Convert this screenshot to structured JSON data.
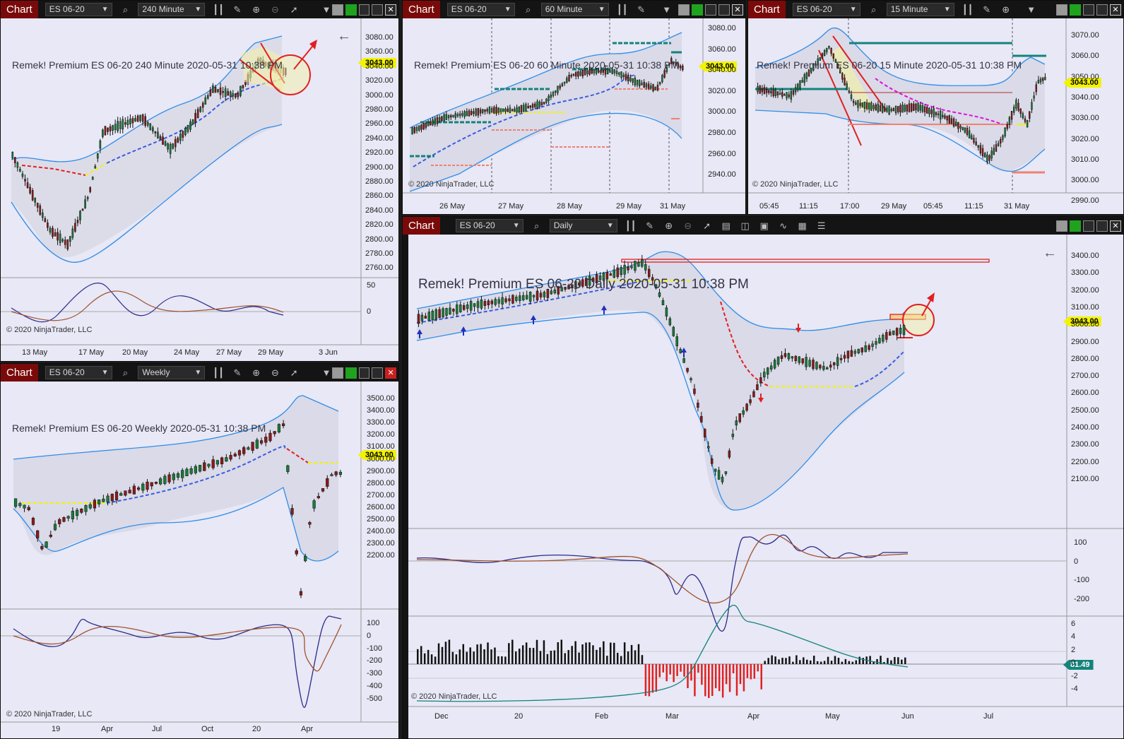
{
  "app": {
    "tab_label": "Chart",
    "copyright": "© 2020 NinjaTrader, LLC",
    "instrument": "ES 06-20",
    "last_price": "3043.00",
    "back_glyph": "←"
  },
  "icons": [
    "search-icon",
    "bar-style-icon",
    "pencil-icon",
    "zoom-in-icon",
    "zoom-out-icon",
    "pointer-icon",
    "properties-icon",
    "panels-icon",
    "instrument-icon",
    "strategies-icon",
    "indicators-icon",
    "list-icon"
  ],
  "colors": {
    "tab": "#7a0a0a",
    "background": "#e8e8f6",
    "band": "#2f8de8",
    "midline": "#3b5de0",
    "price_box": "#f3f300",
    "up_candle": "#1b7a3a",
    "down_candle": "#8b1a1a",
    "alert": "#e02020",
    "teal": "#13837b"
  },
  "windows": {
    "w240": {
      "interval": "240 Minute",
      "label": "Remek!  Premium  ES 06-20  240 Minute  2020-05-31 10:38 PM",
      "yticks": [
        "3080.00",
        "3060.00",
        "3040.00",
        "3020.00",
        "3000.00",
        "2980.00",
        "2960.00",
        "2940.00",
        "2920.00",
        "2900.00",
        "2880.00",
        "2860.00",
        "2840.00",
        "2820.00",
        "2800.00",
        "2780.00",
        "2760.00"
      ],
      "osc_ticks": [
        "50",
        "0"
      ],
      "xticks": [
        "13 May",
        "17 May",
        "20 May",
        "24 May",
        "27 May",
        "29 May",
        "3 Jun"
      ]
    },
    "w60": {
      "interval": "60 Minute",
      "label": "Remek!  Premium  ES 06-20  60 Minute  2020-05-31 10:38 PM",
      "yticks": [
        "3080.00",
        "3060.00",
        "3040.00",
        "3020.00",
        "3000.00",
        "2980.00",
        "2960.00",
        "2940.00"
      ],
      "xticks": [
        "26 May",
        "27 May",
        "28 May",
        "29 May",
        "31 May"
      ]
    },
    "w15": {
      "interval": "15 Minute",
      "label": "Remek!  Premium  ES 06-20  15 Minute  2020-05-31 10:38 PM",
      "yticks": [
        "3070.00",
        "3060.00",
        "3050.00",
        "3040.00",
        "3030.00",
        "3020.00",
        "3010.00",
        "3000.00",
        "2990.00"
      ],
      "xticks": [
        "05:45",
        "11:15",
        "17:00",
        "29 May",
        "05:45",
        "11:15",
        "31 May"
      ]
    },
    "weekly": {
      "interval": "Weekly",
      "label": "Remek!  Premium  ES 06-20  Weekly  2020-05-31 10:38 PM",
      "yticks": [
        "3500.00",
        "3400.00",
        "3300.00",
        "3200.00",
        "3100.00",
        "3000.00",
        "2900.00",
        "2800.00",
        "2700.00",
        "2600.00",
        "2500.00",
        "2400.00",
        "2300.00",
        "2200.00"
      ],
      "osc_ticks": [
        "100",
        "0",
        "-100",
        "-200",
        "-300",
        "-400",
        "-500"
      ],
      "xticks": [
        "19",
        "Apr",
        "Jul",
        "Oct",
        "20",
        "Apr"
      ]
    },
    "daily": {
      "interval": "Daily",
      "label": "Remek!  Premium  ES 06-20  Daily  2020-05-31 10:38 PM",
      "yticks": [
        "3400.00",
        "3300.00",
        "3200.00",
        "3100.00",
        "3000.00",
        "2900.00",
        "2800.00",
        "2700.00",
        "2600.00",
        "2500.00",
        "2400.00",
        "2300.00",
        "2200.00",
        "2100.00"
      ],
      "osc_ticks": [
        "100",
        "0",
        "-100",
        "-200"
      ],
      "hist_ticks": [
        "6",
        "4",
        "2",
        "0",
        "-2",
        "-4"
      ],
      "hist_value": "81.49",
      "xticks": [
        "Dec",
        "20",
        "Feb",
        "Mar",
        "Apr",
        "May",
        "Jun",
        "Jul"
      ]
    }
  }
}
